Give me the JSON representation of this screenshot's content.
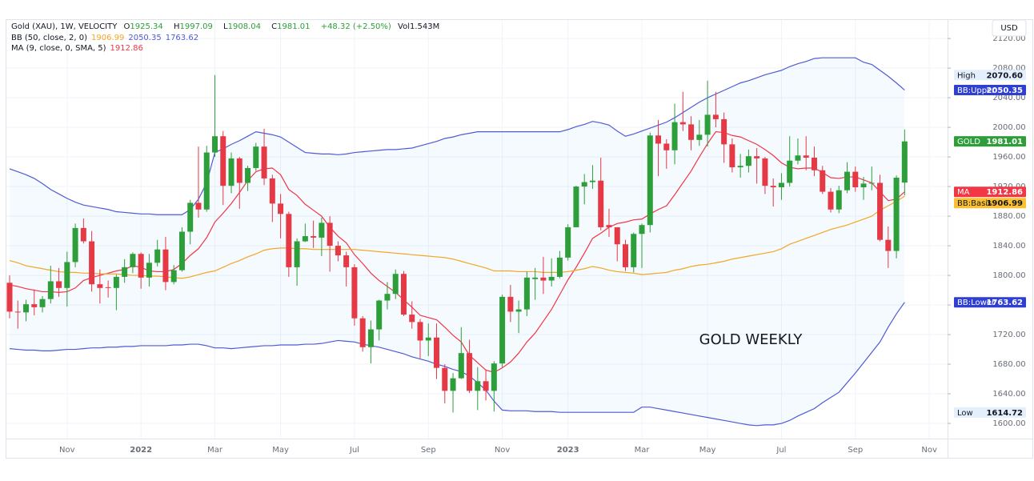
{
  "chart_data": {
    "type": "candlestick",
    "title": "Gold (XAU), 1W, VELOCITY",
    "quote": {
      "open": {
        "key": "O",
        "value": 1925.34
      },
      "high": {
        "key": "H",
        "value": 1997.09
      },
      "low": {
        "key": "L",
        "value": 1908.04
      },
      "close": {
        "key": "C",
        "value": 1981.01
      },
      "change": "+48.32 (+2.50%)",
      "volume": {
        "key": "Vol",
        "value": "1.543M"
      }
    },
    "indicators": [
      {
        "name": "BB (50, close, 2, 0)",
        "values": [
          1906.99,
          2050.35,
          1763.62
        ],
        "colors": [
          "#f5a623",
          "#4f5bd5",
          "#4f5bd5"
        ]
      },
      {
        "name": "MA (9, close, 0, SMA, 5)",
        "values": [
          1912.86
        ],
        "colors": [
          "#f23645"
        ]
      }
    ],
    "annotation": "GOLD WEEKLY",
    "currency": "USD",
    "categories": [
      null,
      null,
      null,
      null,
      null,
      null,
      null,
      "Nov",
      null,
      null,
      null,
      null,
      null,
      null,
      null,
      null,
      "2022",
      null,
      null,
      null,
      null,
      null,
      null,
      null,
      null,
      "Mar",
      null,
      null,
      null,
      null,
      null,
      null,
      null,
      "May",
      null,
      null,
      null,
      null,
      null,
      null,
      null,
      null,
      "Jul",
      null,
      null,
      null,
      null,
      null,
      null,
      null,
      null,
      "Sep",
      null,
      null,
      null,
      null,
      null,
      null,
      null,
      null,
      "Nov",
      null,
      null,
      null,
      null,
      null,
      null,
      null,
      "2023",
      null,
      null,
      null,
      null,
      null,
      null,
      null,
      null,
      "Mar",
      null,
      null,
      null,
      null,
      null,
      null,
      null,
      "May",
      null,
      null,
      null,
      null,
      null,
      null,
      null,
      null,
      "Jul",
      null,
      null,
      null,
      null,
      null,
      null,
      null,
      null,
      "Sep",
      null,
      null,
      null,
      null,
      null,
      null,
      null,
      null,
      "Nov"
    ],
    "candles": {
      "name": "GOLD",
      "up_color": "#2e9e3a",
      "down_color": "#e53946",
      "last_label": "1981.01",
      "open": [
        1790,
        1751,
        1750,
        1761,
        1757,
        1768,
        1792,
        1783,
        1818,
        1864,
        1846,
        1788,
        1784,
        1783,
        1798,
        1811,
        1829,
        1797,
        1817,
        1835,
        1791,
        1807,
        1859,
        1898,
        1889,
        1966,
        1988,
        1921,
        1958,
        1925,
        1945,
        1974,
        1931,
        1897,
        1883,
        1811,
        1846,
        1853,
        1851,
        1871,
        1840,
        1827,
        1811,
        1742,
        1703,
        1727,
        1766,
        1775,
        1802,
        1747,
        1737,
        1712,
        1716,
        1675,
        1644,
        1661,
        1695,
        1644,
        1657,
        1644,
        1681,
        1771,
        1751,
        1754,
        1795,
        1797,
        1793,
        1798,
        1824,
        1865,
        1920,
        1926,
        1928,
        1868,
        1865,
        1842,
        1811,
        1856,
        1868,
        1989,
        1978,
        1969,
        2007,
        2004,
        1983,
        1990,
        2017,
        2011,
        1977,
        1946,
        1948,
        1961,
        1958,
        1921,
        1919,
        1925,
        1955,
        1962,
        1959,
        1942,
        1913,
        1889,
        1915,
        1940,
        1919,
        1924,
        1925,
        1848,
        1833,
        1925.34,
        null,
        null,
        null
      ],
      "high": [
        1800,
        1766,
        1767,
        1781,
        1772,
        1813,
        1810,
        1832,
        1870,
        1877,
        1860,
        1808,
        1793,
        1801,
        1822,
        1831,
        1831,
        1829,
        1848,
        1852,
        1814,
        1865,
        1902,
        1974,
        1975,
        2070.6,
        1995,
        1966,
        1960,
        1948,
        1979,
        1998,
        1936,
        1910,
        1886,
        1850,
        1870,
        1874,
        1878,
        1880,
        1846,
        1832,
        1815,
        1745,
        1739,
        1767,
        1791,
        1808,
        1806,
        1765,
        1741,
        1735,
        1735,
        1680,
        1668,
        1730,
        1713,
        1676,
        1673,
        1684,
        1774,
        1787,
        1766,
        1805,
        1810,
        1825,
        1823,
        1833,
        1869,
        1921,
        1937,
        1949,
        1959,
        1890,
        1865,
        1848,
        1858,
        1870,
        1993,
        2010,
        1984,
        2032,
        2048,
        2015,
        2010,
        2063,
        2048,
        2020,
        1985,
        1964,
        1970,
        1972,
        1960,
        1931,
        1938,
        1988,
        1985,
        1988,
        1974,
        1948,
        1918,
        1921,
        1953,
        1947,
        1933,
        1947,
        1936,
        1866,
        1935,
        1997.09,
        null,
        null,
        null
      ],
      "low": [
        1742,
        1728,
        1738,
        1746,
        1750,
        1762,
        1771,
        1758,
        1811,
        1843,
        1778,
        1762,
        1770,
        1753,
        1790,
        1803,
        1782,
        1785,
        1812,
        1780,
        1788,
        1805,
        1842,
        1878,
        1886,
        1960,
        1895,
        1911,
        1890,
        1914,
        1941,
        1922,
        1872,
        1850,
        1798,
        1786,
        1845,
        1837,
        1826,
        1805,
        1819,
        1785,
        1732,
        1697,
        1681,
        1712,
        1754,
        1768,
        1745,
        1728,
        1688,
        1691,
        1660,
        1627,
        1614.72,
        1660,
        1641,
        1618,
        1631,
        1616,
        1676,
        1737,
        1722,
        1745,
        1767,
        1775,
        1785,
        1796,
        1820,
        1866,
        1896,
        1917,
        1861,
        1852,
        1819,
        1806,
        1804,
        1810,
        1858,
        1934,
        1944,
        1950,
        1995,
        1969,
        1975,
        1974,
        2000,
        1952,
        1939,
        1932,
        1939,
        1924,
        1910,
        1893,
        1902,
        1920,
        1950,
        1942,
        1934,
        1910,
        1885,
        1884,
        1911,
        1913,
        1902,
        1915,
        1846,
        1810,
        1823,
        1908.04,
        null,
        null,
        null
      ],
      "close": [
        1751,
        1750,
        1761,
        1757,
        1768,
        1792,
        1783,
        1818,
        1864,
        1846,
        1788,
        1783,
        1783,
        1798,
        1811,
        1829,
        1797,
        1817,
        1835,
        1791,
        1807,
        1859,
        1898,
        1889,
        1966,
        1988,
        1921,
        1958,
        1925,
        1945,
        1974,
        1931,
        1897,
        1883,
        1811,
        1846,
        1853,
        1851,
        1871,
        1840,
        1827,
        1811,
        1742,
        1703,
        1727,
        1766,
        1775,
        1802,
        1747,
        1737,
        1712,
        1716,
        1675,
        1644,
        1661,
        1695,
        1644,
        1657,
        1644,
        1681,
        1771,
        1751,
        1754,
        1797,
        1797,
        1793,
        1798,
        1824,
        1865,
        1920,
        1926,
        1928,
        1865,
        1865,
        1842,
        1811,
        1856,
        1868,
        1989,
        1978,
        1969,
        2007,
        2004,
        1983,
        1990,
        2017,
        2011,
        1977,
        1946,
        1948,
        1961,
        1958,
        1921,
        1919,
        1925,
        1955,
        1962,
        1959,
        1942,
        1913,
        1889,
        1915,
        1940,
        1919,
        1924,
        1925,
        1848,
        1833,
        1932,
        1981.01,
        null,
        null,
        null
      ]
    },
    "series": [
      {
        "name": "MA",
        "color": "#f23645",
        "last_label": "1912.86",
        "values": [
          1787,
          1785,
          1782,
          1780,
          1778,
          1778,
          1777,
          1778,
          1783,
          1793,
          1797,
          1800,
          1803,
          1806,
          1808,
          1813,
          1811,
          1806,
          1805,
          1805,
          1808,
          1816,
          1827,
          1836,
          1851,
          1872,
          1884,
          1897,
          1912,
          1928,
          1940,
          1944,
          1945,
          1936,
          1916,
          1908,
          1896,
          1888,
          1880,
          1865,
          1853,
          1844,
          1828,
          1816,
          1803,
          1793,
          1785,
          1777,
          1767,
          1757,
          1746,
          1743,
          1740,
          1730,
          1719,
          1710,
          1692,
          1682,
          1672,
          1669,
          1675,
          1683,
          1695,
          1710,
          1722,
          1738,
          1754,
          1774,
          1794,
          1811,
          1830,
          1850,
          1857,
          1865,
          1870,
          1872,
          1875,
          1876,
          1883,
          1889,
          1894,
          1909,
          1925,
          1941,
          1960,
          1978,
          1994,
          1993,
          1989,
          1987,
          1982,
          1977,
          1970,
          1962,
          1952,
          1946,
          1944,
          1945,
          1945,
          1939,
          1932,
          1931,
          1933,
          1933,
          1929,
          1925,
          1913,
          1901,
          1903,
          1912.86,
          null,
          null,
          null
        ]
      },
      {
        "name": "BB:Upper",
        "color": "#4f5bd5",
        "last_label": "2050.35",
        "values": [
          1944,
          1940,
          1936,
          1931,
          1924,
          1916,
          1910,
          1904,
          1899,
          1895,
          1893,
          1891,
          1889,
          1886,
          1885,
          1884,
          1883,
          1883,
          1882,
          1882,
          1882,
          1882,
          1889,
          1903,
          1925,
          1966,
          1971,
          1977,
          1982,
          1988,
          1994,
          1992,
          1990,
          1987,
          1980,
          1973,
          1966,
          1965,
          1964,
          1964,
          1963,
          1964,
          1966,
          1967,
          1968,
          1969,
          1970,
          1970,
          1971,
          1972,
          1975,
          1978,
          1981,
          1985,
          1987,
          1990,
          1992,
          1994,
          1994,
          1994,
          1994,
          1994,
          1994,
          1994,
          1994,
          1994,
          1994,
          1994,
          1997,
          2001,
          2004,
          2008,
          2006,
          2003,
          1995,
          1988,
          1991,
          1995,
          1999,
          2003,
          2007,
          2013,
          2020,
          2027,
          2034,
          2040,
          2045,
          2050,
          2055,
          2060,
          2063,
          2067,
          2071,
          2074,
          2077,
          2082,
          2086,
          2089,
          2093,
          2094,
          2094,
          2094,
          2094,
          2094,
          2088,
          2085,
          2077,
          2069,
          2060,
          2050.35,
          null,
          null,
          null
        ]
      },
      {
        "name": "BB:Basis",
        "color": "#f5a623",
        "last_label": "1906.99",
        "values": [
          1820,
          1817,
          1813,
          1811,
          1809,
          1807,
          1805,
          1804,
          1804,
          1803,
          1803,
          1802,
          1802,
          1802,
          1801,
          1800,
          1800,
          1799,
          1799,
          1798,
          1797,
          1796,
          1798,
          1801,
          1804,
          1806,
          1811,
          1816,
          1820,
          1825,
          1829,
          1834,
          1836,
          1837,
          1837,
          1836,
          1836,
          1835,
          1835,
          1835,
          1835,
          1835,
          1835,
          1834,
          1833,
          1832,
          1831,
          1830,
          1829,
          1828,
          1827,
          1826,
          1825,
          1824,
          1822,
          1819,
          1816,
          1813,
          1810,
          1806,
          1806,
          1806,
          1805,
          1805,
          1805,
          1804,
          1804,
          1804,
          1805,
          1807,
          1809,
          1812,
          1810,
          1807,
          1805,
          1804,
          1803,
          1801,
          1802,
          1803,
          1804,
          1807,
          1809,
          1812,
          1814,
          1815,
          1817,
          1819,
          1822,
          1824,
          1826,
          1828,
          1830,
          1832,
          1836,
          1842,
          1846,
          1850,
          1854,
          1858,
          1862,
          1865,
          1868,
          1872,
          1876,
          1880,
          1888,
          1894,
          1900,
          1906.99,
          null,
          null,
          null
        ]
      },
      {
        "name": "BB:Lower",
        "color": "#4f5bd5",
        "last_label": "1763.62",
        "values": [
          1701,
          1700,
          1699,
          1699,
          1698,
          1698,
          1699,
          1700,
          1700,
          1701,
          1702,
          1702,
          1703,
          1703,
          1704,
          1704,
          1705,
          1705,
          1705,
          1705,
          1706,
          1706,
          1707,
          1707,
          1705,
          1702,
          1702,
          1701,
          1702,
          1703,
          1704,
          1705,
          1705,
          1706,
          1706,
          1706,
          1707,
          1707,
          1708,
          1710,
          1712,
          1711,
          1710,
          1707,
          1705,
          1703,
          1700,
          1697,
          1694,
          1690,
          1687,
          1684,
          1680,
          1677,
          1673,
          1670,
          1664,
          1655,
          1645,
          1630,
          1618,
          1617,
          1617,
          1617,
          1616,
          1616,
          1616,
          1615,
          1615,
          1615,
          1615,
          1615,
          1615,
          1615,
          1615,
          1615,
          1615,
          1622,
          1622,
          1620,
          1618,
          1616,
          1614,
          1612,
          1610,
          1608,
          1606,
          1604,
          1602,
          1600,
          1598,
          1597,
          1598,
          1598,
          1600,
          1604,
          1610,
          1615,
          1620,
          1628,
          1635,
          1642,
          1655,
          1668,
          1682,
          1696,
          1710,
          1730,
          1748,
          1763.62,
          null,
          null,
          null
        ]
      }
    ],
    "band_fill": "#2196f3",
    "extremes": [
      {
        "name": "High",
        "value": 2070.6,
        "label": "2070.60"
      },
      {
        "name": "Low",
        "value": 1614.72,
        "label": "1614.72"
      }
    ],
    "ylim": [
      1579.5,
      2145
    ],
    "yticks": [
      {
        "value": 1600,
        "label": "1600.00"
      },
      {
        "value": 1640,
        "label": "1640.00"
      },
      {
        "value": 1680,
        "label": "1680.00"
      },
      {
        "value": 1720,
        "label": "1720.00"
      },
      {
        "value": 1760,
        "label": "1760.00"
      },
      {
        "value": 1800,
        "label": "1800.00"
      },
      {
        "value": 1840,
        "label": "1840.00"
      },
      {
        "value": 1880,
        "label": "1880.00"
      },
      {
        "value": 1920,
        "label": "1920.00"
      },
      {
        "value": 1960,
        "label": "1960.00"
      },
      {
        "value": 2000,
        "label": "2000.00"
      },
      {
        "value": 2040,
        "label": "2040.00"
      },
      {
        "value": 2080,
        "label": "2080.00"
      },
      {
        "value": 2120,
        "label": "2120.00"
      }
    ],
    "grid": true
  }
}
